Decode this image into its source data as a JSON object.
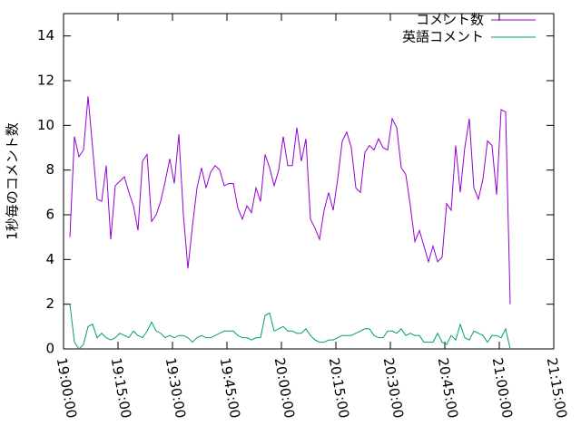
{
  "chart_data": {
    "type": "line",
    "y_label": "1秒毎のコメント数",
    "x": [
      "19:01:45",
      "19:03:00",
      "19:04:15",
      "19:05:30",
      "19:06:45",
      "19:08:00",
      "19:09:15",
      "19:10:30",
      "19:11:45",
      "19:13:00",
      "19:14:15",
      "19:15:30",
      "19:16:45",
      "19:18:00",
      "19:19:15",
      "19:20:30",
      "19:21:45",
      "19:23:00",
      "19:24:15",
      "19:25:30",
      "19:26:45",
      "19:28:00",
      "19:29:15",
      "19:30:30",
      "19:31:45",
      "19:33:00",
      "19:34:15",
      "19:35:30",
      "19:36:45",
      "19:38:00",
      "19:39:15",
      "19:40:30",
      "19:41:45",
      "19:43:00",
      "19:44:15",
      "19:45:30",
      "19:46:45",
      "19:48:00",
      "19:49:15",
      "19:50:30",
      "19:51:45",
      "19:53:00",
      "19:54:15",
      "19:55:30",
      "19:56:45",
      "19:58:00",
      "19:59:15",
      "20:00:30",
      "20:01:45",
      "20:03:00",
      "20:04:15",
      "20:05:30",
      "20:06:45",
      "20:08:00",
      "20:09:15",
      "20:10:30",
      "20:11:45",
      "20:13:00",
      "20:14:15",
      "20:15:30",
      "20:16:45",
      "20:18:00",
      "20:19:15",
      "20:20:30",
      "20:21:45",
      "20:23:00",
      "20:24:15",
      "20:25:30",
      "20:26:45",
      "20:28:00",
      "20:29:15",
      "20:30:30",
      "20:31:45",
      "20:33:00",
      "20:34:15",
      "20:35:30",
      "20:36:45",
      "20:38:00",
      "20:39:15",
      "20:40:30",
      "20:41:45",
      "20:43:00",
      "20:44:15",
      "20:45:30",
      "20:46:45",
      "20:48:00",
      "20:49:15",
      "20:50:30",
      "20:51:45",
      "20:53:00",
      "20:54:15",
      "20:55:30",
      "20:56:45",
      "20:58:00",
      "20:59:15",
      "21:00:30",
      "21:01:45",
      "21:03:00"
    ],
    "series": [
      {
        "name": "コメント数",
        "color": "#9400d3",
        "values": [
          5.0,
          9.5,
          8.6,
          8.9,
          11.3,
          9.0,
          6.7,
          6.6,
          8.2,
          4.9,
          7.3,
          7.5,
          7.7,
          7.0,
          6.4,
          5.3,
          8.4,
          8.7,
          5.7,
          6.0,
          6.6,
          7.5,
          8.5,
          7.4,
          9.6,
          6.0,
          3.6,
          5.5,
          7.2,
          8.1,
          7.2,
          7.9,
          8.2,
          8.0,
          7.3,
          7.4,
          7.4,
          6.3,
          5.8,
          6.4,
          6.1,
          7.2,
          6.6,
          8.7,
          8.1,
          7.3,
          8.0,
          9.5,
          8.2,
          8.2,
          9.9,
          8.4,
          9.4,
          5.8,
          5.4,
          4.9,
          6.2,
          7.0,
          6.2,
          7.6,
          9.3,
          9.7,
          9.0,
          7.2,
          7.0,
          8.8,
          9.1,
          8.9,
          9.4,
          9.0,
          8.9,
          10.3,
          9.9,
          8.1,
          7.8,
          6.4,
          4.8,
          5.3,
          4.6,
          3.9,
          4.6,
          3.9,
          4.1,
          6.5,
          6.2,
          9.1,
          7.0,
          9.0,
          10.3,
          7.2,
          6.7,
          7.6,
          9.3,
          9.1,
          6.9,
          10.7,
          10.6,
          2.0
        ]
      },
      {
        "name": "英語コメント",
        "color": "#009e73",
        "values": [
          2.0,
          0.3,
          0.0,
          0.2,
          1.0,
          1.1,
          0.5,
          0.7,
          0.5,
          0.4,
          0.5,
          0.7,
          0.6,
          0.5,
          0.8,
          0.6,
          0.5,
          0.8,
          1.2,
          0.8,
          0.7,
          0.5,
          0.6,
          0.5,
          0.6,
          0.6,
          0.5,
          0.3,
          0.5,
          0.6,
          0.5,
          0.5,
          0.6,
          0.7,
          0.8,
          0.8,
          0.8,
          0.6,
          0.5,
          0.5,
          0.4,
          0.5,
          0.5,
          1.5,
          1.6,
          0.8,
          0.9,
          1.0,
          0.8,
          0.8,
          0.7,
          0.7,
          0.9,
          0.6,
          0.4,
          0.3,
          0.3,
          0.4,
          0.4,
          0.5,
          0.6,
          0.6,
          0.6,
          0.7,
          0.8,
          0.9,
          0.9,
          0.6,
          0.5,
          0.5,
          0.8,
          0.8,
          0.7,
          0.9,
          0.6,
          0.7,
          0.6,
          0.6,
          0.3,
          0.3,
          0.3,
          0.7,
          0.3,
          0.2,
          0.6,
          0.4,
          1.1,
          0.5,
          0.4,
          0.8,
          0.7,
          0.6,
          0.3,
          0.6,
          0.6,
          0.5,
          0.9,
          0.0
        ]
      }
    ],
    "xlim": [
      "19:00:00",
      "21:15:00"
    ],
    "xticks": [
      "19:00:00",
      "19:15:00",
      "19:30:00",
      "19:45:00",
      "20:00:00",
      "20:15:00",
      "20:30:00",
      "20:45:00",
      "21:00:00",
      "21:15:00"
    ],
    "ylim": [
      0,
      15
    ],
    "yticks": [
      0,
      2,
      4,
      6,
      8,
      10,
      12,
      14
    ],
    "legend": "top-right"
  }
}
